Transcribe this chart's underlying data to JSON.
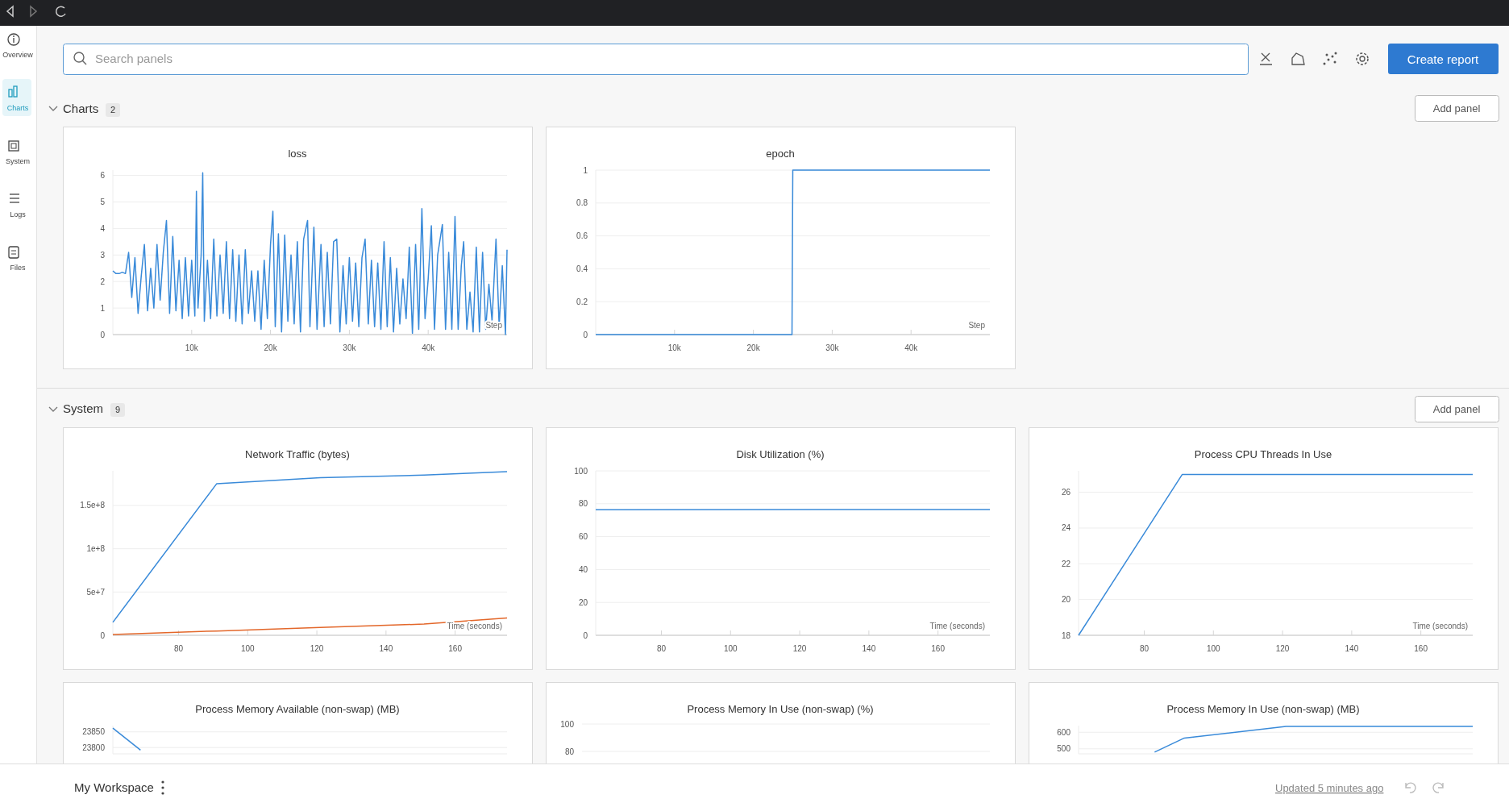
{
  "chart_data": [
    {
      "type": "line",
      "title": "loss",
      "xlabel": "Step",
      "grid": "y",
      "xlim": [
        0,
        50000
      ],
      "ylim": [
        0,
        6.2
      ],
      "xticks": [
        {
          "value": 10000,
          "label": "10k"
        },
        {
          "value": 20000,
          "label": "20k"
        },
        {
          "value": 30000,
          "label": "30k"
        },
        {
          "value": 40000,
          "label": "40k"
        }
      ],
      "yticks": [
        0,
        1,
        2,
        3,
        4,
        5,
        6
      ],
      "x": [
        0,
        400,
        800,
        1200,
        1600,
        2000,
        2400,
        2800,
        3200,
        3600,
        4000,
        4400,
        4800,
        5200,
        5600,
        6000,
        6400,
        6800,
        7200,
        7600,
        8000,
        8400,
        8800,
        9200,
        9600,
        10000,
        10400,
        10600,
        10800,
        11200,
        11400,
        11600,
        12000,
        12400,
        12800,
        13200,
        13600,
        14000,
        14400,
        14800,
        15200,
        15600,
        16000,
        16400,
        16800,
        17200,
        17600,
        18000,
        18400,
        18800,
        19200,
        19600,
        20000,
        20300,
        20600,
        21000,
        21400,
        21800,
        22200,
        22600,
        23000,
        23400,
        23800,
        24200,
        24700,
        25000,
        25500,
        25900,
        26400,
        26800,
        27200,
        27600,
        28000,
        28400,
        28800,
        29200,
        29600,
        30000,
        30400,
        30800,
        31200,
        31600,
        32000,
        32400,
        32800,
        33200,
        33600,
        34000,
        34400,
        34800,
        35200,
        35600,
        36000,
        36400,
        36800,
        37200,
        37600,
        38000,
        38400,
        38800,
        39200,
        39600,
        40000,
        40400,
        40800,
        41200,
        41800,
        42200,
        42600,
        43000,
        43400,
        43800,
        44200,
        44500,
        44900,
        45300,
        45700,
        46100,
        46500,
        46900,
        47300,
        47700,
        48100,
        48600,
        49000,
        49400,
        49800,
        50000
      ],
      "series": [
        {
          "color": "#398ad9",
          "values": [
            2.4,
            2.3,
            2.3,
            2.35,
            2.3,
            3.1,
            1.4,
            2.9,
            0.8,
            2.2,
            3.4,
            0.9,
            2.5,
            1.0,
            3.4,
            1.3,
            3.1,
            4.3,
            0.8,
            3.7,
            0.9,
            2.8,
            0.6,
            2.9,
            0.7,
            2.8,
            0.7,
            5.4,
            1.0,
            3.0,
            6.1,
            0.5,
            2.8,
            0.6,
            3.6,
            0.7,
            3.0,
            0.8,
            3.5,
            0.6,
            3.2,
            0.5,
            3.0,
            0.4,
            3.2,
            0.8,
            2.4,
            0.5,
            2.4,
            0.2,
            2.8,
            0.6,
            3.4,
            4.65,
            0.3,
            3.8,
            0.1,
            3.75,
            0.5,
            3.0,
            0.4,
            3.5,
            0.1,
            3.6,
            4.3,
            0.3,
            4.05,
            0.2,
            3.4,
            0.3,
            3.1,
            0.4,
            3.5,
            3.6,
            0.1,
            2.6,
            0.4,
            2.9,
            0.5,
            2.7,
            0.3,
            2.9,
            3.6,
            0.4,
            2.8,
            0.3,
            2.7,
            0.2,
            3.5,
            0.3,
            2.9,
            0.1,
            2.5,
            0.4,
            2.1,
            0.6,
            3.3,
            0.05,
            3.4,
            0.2,
            4.75,
            0.6,
            2.1,
            4.1,
            0.2,
            3.0,
            4.15,
            0.2,
            3.1,
            0.2,
            4.45,
            0.2,
            2.6,
            3.5,
            0.2,
            1.6,
            0.1,
            3.3,
            0.1,
            3.1,
            0.2,
            1.9,
            0.5,
            3.6,
            0.3,
            2.6,
            0.0,
            3.2
          ]
        }
      ]
    },
    {
      "type": "line",
      "title": "epoch",
      "xlabel": "Step",
      "grid": "y",
      "xlim": [
        0,
        50000
      ],
      "ylim": [
        0,
        1
      ],
      "xticks": [
        {
          "value": 10000,
          "label": "10k"
        },
        {
          "value": 20000,
          "label": "20k"
        },
        {
          "value": 30000,
          "label": "30k"
        },
        {
          "value": 40000,
          "label": "40k"
        }
      ],
      "yticks": [
        0,
        0.2,
        0.4,
        0.6,
        0.8,
        1
      ],
      "x": [
        0,
        24900,
        25000,
        50000
      ],
      "series": [
        {
          "color": "#398ad9",
          "values": [
            0,
            0,
            1,
            1
          ]
        }
      ]
    },
    {
      "type": "line",
      "title": "Network Traffic (bytes)",
      "xlabel": "Time (seconds)",
      "grid": "y",
      "xlim": [
        61,
        175
      ],
      "ylim": [
        0,
        190000000
      ],
      "xticks": [
        80,
        100,
        120,
        140,
        160
      ],
      "yticks": [
        0,
        {
          "value": 50000000,
          "label": "5e+7"
        },
        {
          "value": 100000000,
          "label": "1e+8"
        },
        {
          "value": 150000000,
          "label": "1.5e+8"
        }
      ],
      "x": [
        61,
        91,
        121,
        151,
        175
      ],
      "series": [
        {
          "color": "#398ad9",
          "values": [
            15000000,
            175000000,
            182000000,
            185000000,
            189000000
          ]
        },
        {
          "color": "#e3672a",
          "values": [
            1000000,
            5000000,
            9000000,
            13000000,
            20000000
          ]
        }
      ]
    },
    {
      "type": "line",
      "title": "Disk Utilization (%)",
      "xlabel": "Time (seconds)",
      "grid": "y",
      "xlim": [
        61,
        175
      ],
      "ylim": [
        0,
        100
      ],
      "xticks": [
        80,
        100,
        120,
        140,
        160
      ],
      "yticks": [
        0,
        20,
        40,
        60,
        80,
        100
      ],
      "x": [
        61,
        175
      ],
      "series": [
        {
          "color": "#398ad9",
          "values": [
            76.3,
            76.5
          ]
        }
      ]
    },
    {
      "type": "line",
      "title": "Process CPU Threads In Use",
      "xlabel": "Time (seconds)",
      "grid": "y",
      "xlim": [
        61,
        175
      ],
      "ylim": [
        18,
        27.2
      ],
      "xticks": [
        80,
        100,
        120,
        140,
        160
      ],
      "yticks": [
        18,
        20,
        22,
        24,
        26
      ],
      "x": [
        61,
        91,
        175
      ],
      "series": [
        {
          "color": "#398ad9",
          "values": [
            18,
            27,
            27
          ]
        }
      ]
    },
    {
      "type": "line",
      "title": "Process Memory Available (non-swap) (MB)",
      "grid": "y",
      "tick_labels": "y",
      "xlim": [
        61,
        175
      ],
      "ylim": [
        23780,
        23870
      ],
      "yticks": [
        23800,
        23850
      ],
      "x": [
        61,
        69
      ],
      "series": [
        {
          "color": "#398ad9",
          "values": [
            23862,
            23792
          ]
        }
      ]
    },
    {
      "type": "other",
      "title": "Process Memory In Use (non-swap) (%)",
      "annotations": [
        "100",
        "80"
      ]
    },
    {
      "type": "line",
      "title": "Process Memory In Use (non-swap) (MB)",
      "grid": "y",
      "tick_labels": "y",
      "xlim": [
        61,
        175
      ],
      "ylim": [
        470,
        640
      ],
      "yticks": [
        500,
        600
      ],
      "x": [
        83,
        91.6,
        121,
        175
      ],
      "series": [
        {
          "color": "#398ad9",
          "values": [
            480,
            565,
            635,
            635
          ]
        }
      ]
    },
    {
      "type": "other",
      "annotations": [
        "Overview",
        "Charts",
        "System",
        "Logs",
        "Files",
        "Search panels",
        "Create report",
        "Charts",
        "2",
        "Add panel",
        "System",
        "9",
        "Add panel",
        "My Workspace",
        "Updated 5 minutes ago"
      ]
    }
  ]
}
